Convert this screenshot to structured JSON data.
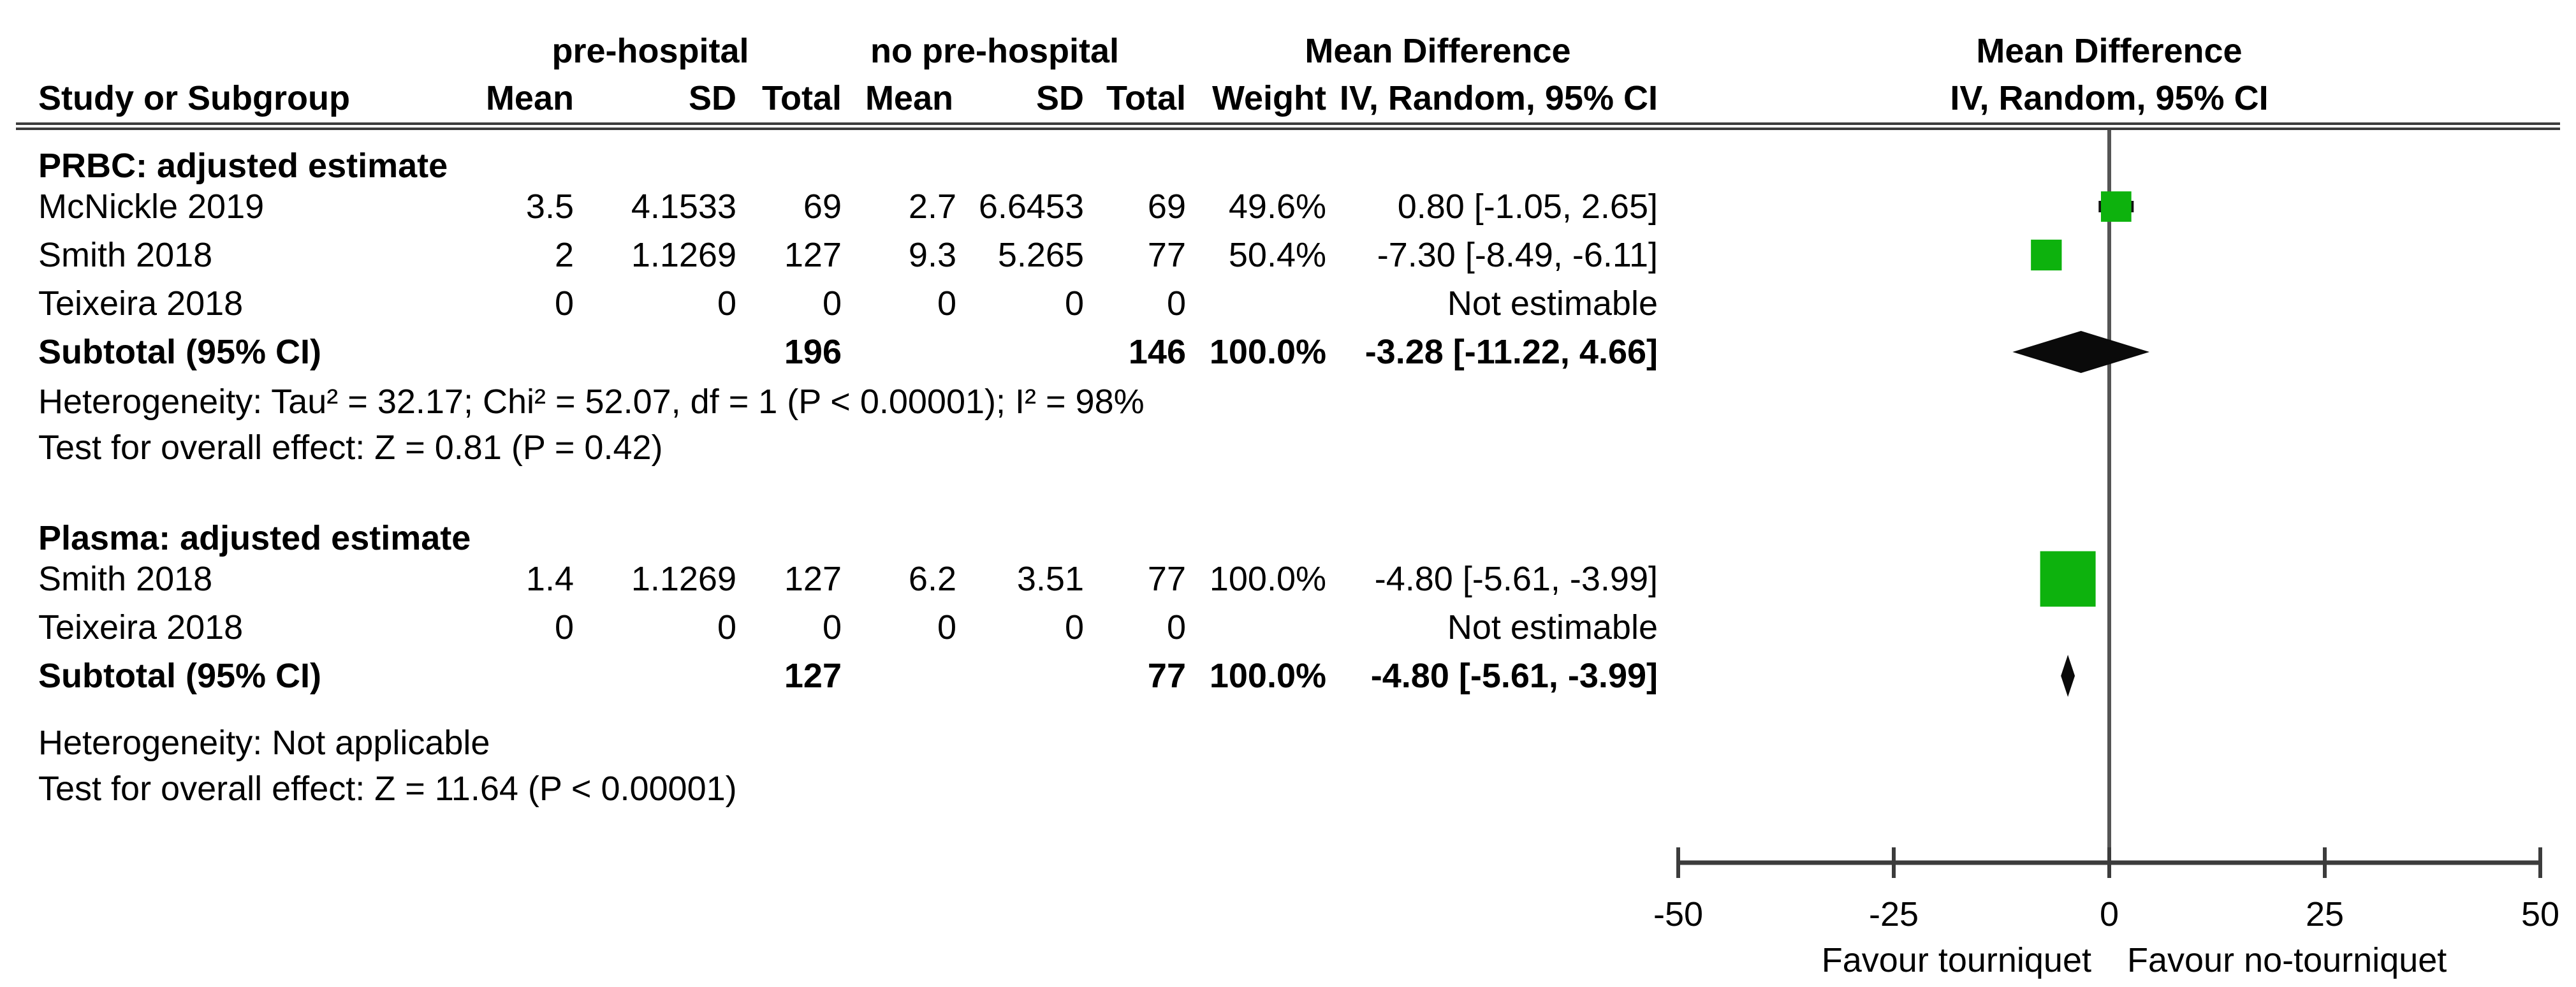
{
  "header": {
    "group1_label": "pre-hospital",
    "group2_label": "no pre-hospital",
    "md_col_title": "Mean Difference",
    "md_col_sub": "IV, Random, 95% CI",
    "plot_title": "Mean Difference",
    "plot_sub": "IV, Random, 95% CI",
    "study_col": "Study or Subgroup",
    "mean_col": "Mean",
    "sd_col": "SD",
    "total_col": "Total",
    "weight_col": "Weight"
  },
  "colors": {
    "marker_green": "#0db20d",
    "diamond_black": "#0a0a0a",
    "line_gray": "#3c3c3c",
    "zero_line_gray": "#555555",
    "text_black": "#000000"
  },
  "chart_data": {
    "type": "forest",
    "effect_measure": "Mean Difference",
    "model": "IV, Random, 95% CI",
    "axis": {
      "min": -50,
      "max": 50,
      "ticks": [
        -50,
        -25,
        0,
        25,
        50
      ],
      "left_label": "Favour tourniquet",
      "right_label": "Favour no-tourniquet"
    },
    "groups": [
      {
        "label": "PRBC: adjusted estimate",
        "studies": [
          {
            "study": "McNickle 2019",
            "mean1": "3.5",
            "sd1": "4.1533",
            "total1": "69",
            "mean2": "2.7",
            "sd2": "6.6453",
            "total2": "69",
            "weight": "49.6%",
            "weight_pct": 49.6,
            "ci_text": "0.80 [-1.05, 2.65]",
            "md": 0.8,
            "lo": -1.05,
            "hi": 2.65,
            "estimable": true
          },
          {
            "study": "Smith 2018",
            "mean1": "2",
            "sd1": "1.1269",
            "total1": "127",
            "mean2": "9.3",
            "sd2": "5.265",
            "total2": "77",
            "weight": "50.4%",
            "weight_pct": 50.4,
            "ci_text": "-7.30 [-8.49, -6.11]",
            "md": -7.3,
            "lo": -8.49,
            "hi": -6.11,
            "estimable": true
          },
          {
            "study": "Teixeira 2018",
            "mean1": "0",
            "sd1": "0",
            "total1": "0",
            "mean2": "0",
            "sd2": "0",
            "total2": "0",
            "weight": "",
            "weight_pct": null,
            "ci_text": "Not estimable",
            "md": null,
            "lo": null,
            "hi": null,
            "estimable": false
          }
        ],
        "subtotal": {
          "label": "Subtotal (95% CI)",
          "total1": "196",
          "total2": "146",
          "weight": "100.0%",
          "ci_text": "-3.28 [-11.22, 4.66]",
          "md": -3.28,
          "lo": -11.22,
          "hi": 4.66
        },
        "heterogeneity": "Heterogeneity: Tau² = 32.17; Chi² = 52.07, df = 1 (P < 0.00001); I² = 98%",
        "overall_effect": "Test for overall effect: Z = 0.81 (P = 0.42)"
      },
      {
        "label": "Plasma: adjusted estimate",
        "studies": [
          {
            "study": "Smith 2018",
            "mean1": "1.4",
            "sd1": "1.1269",
            "total1": "127",
            "mean2": "6.2",
            "sd2": "3.51",
            "total2": "77",
            "weight": "100.0%",
            "weight_pct": 100.0,
            "ci_text": "-4.80 [-5.61, -3.99]",
            "md": -4.8,
            "lo": -5.61,
            "hi": -3.99,
            "estimable": true
          },
          {
            "study": "Teixeira 2018",
            "mean1": "0",
            "sd1": "0",
            "total1": "0",
            "mean2": "0",
            "sd2": "0",
            "total2": "0",
            "weight": "",
            "weight_pct": null,
            "ci_text": "Not estimable",
            "md": null,
            "lo": null,
            "hi": null,
            "estimable": false
          }
        ],
        "subtotal": {
          "label": "Subtotal (95% CI)",
          "total1": "127",
          "total2": "77",
          "weight": "100.0%",
          "ci_text": "-4.80 [-5.61, -3.99]",
          "md": -4.8,
          "lo": -5.61,
          "hi": -3.99
        },
        "heterogeneity": "Heterogeneity: Not applicable",
        "overall_effect": "Test for overall effect: Z = 11.64 (P < 0.00001)"
      }
    ]
  }
}
